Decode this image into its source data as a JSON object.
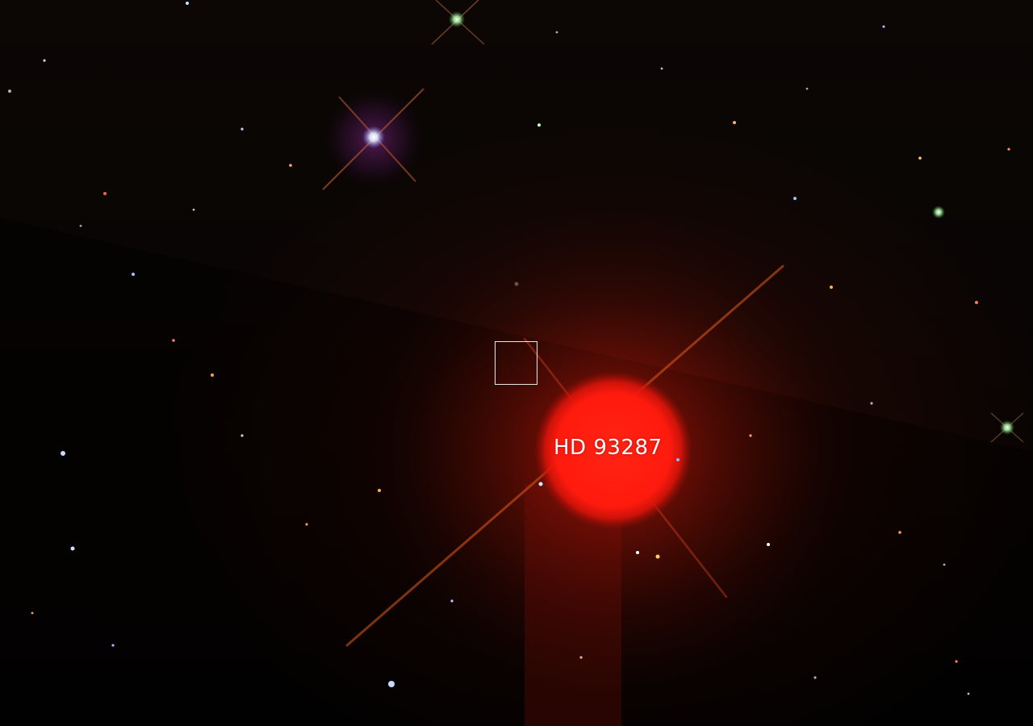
{
  "image": {
    "star_label": "HD 93287"
  },
  "colors": {
    "sky": "#050302",
    "bright_star": "#ff1a10",
    "halo": "#a01408",
    "box_outline": "#e8e8e8"
  }
}
